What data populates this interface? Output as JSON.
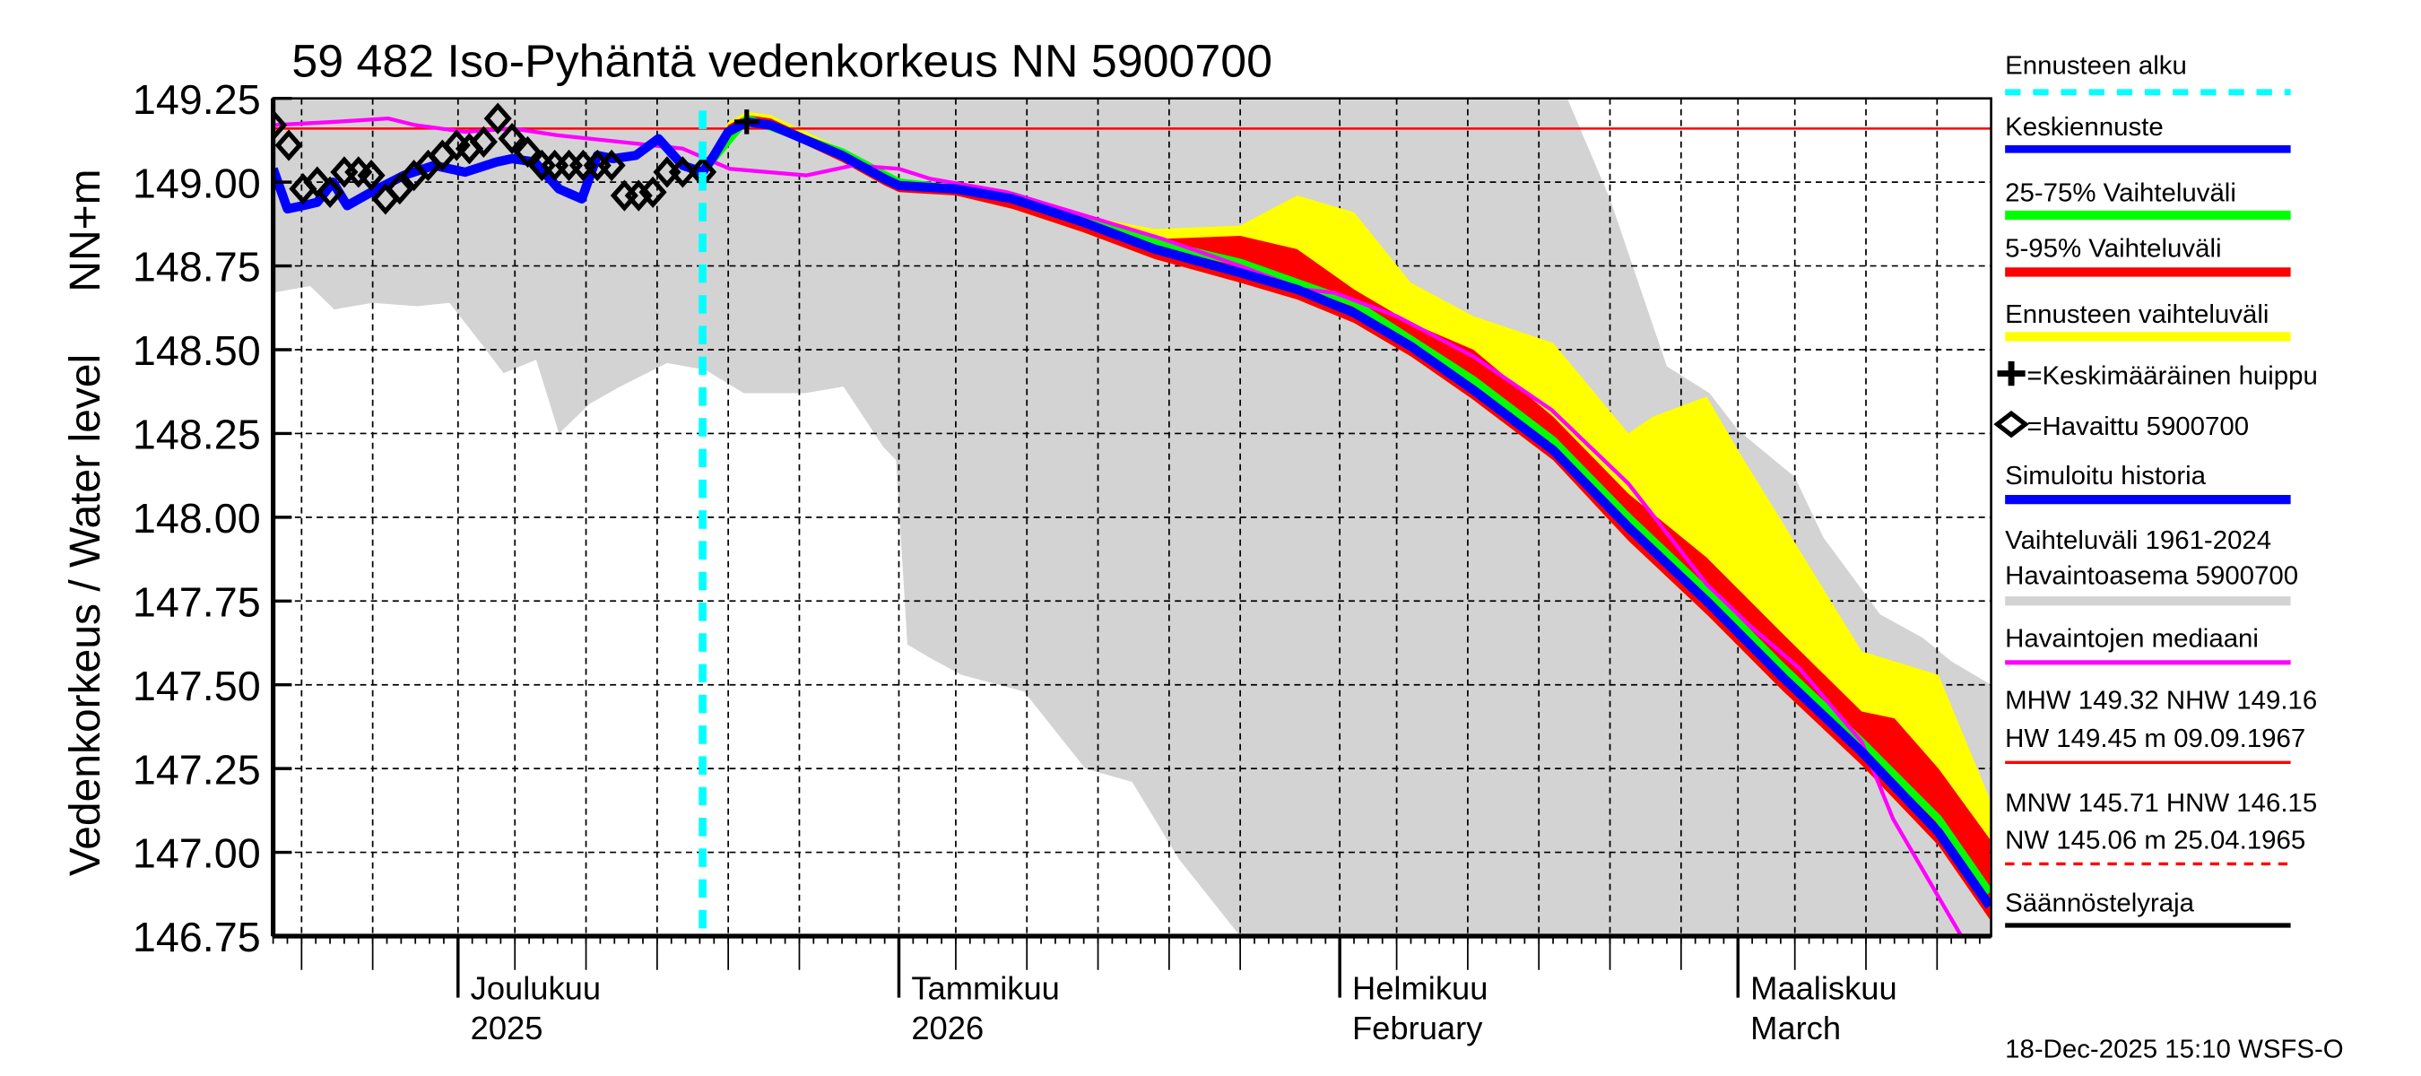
{
  "chart_data": {
    "type": "area",
    "title": "59 482 Iso-Pyhäntä vedenkorkeus NN 5900700",
    "ylabel_top": "NN+m",
    "ylabel": "Vedenkorkeus / Water level",
    "ylim": [
      146.75,
      149.25
    ],
    "yticks": [
      "149.25",
      "149.00",
      "148.75",
      "148.50",
      "148.25",
      "148.00",
      "147.75",
      "147.50",
      "147.25",
      "147.00",
      "146.75"
    ],
    "x_unit": "days since plot start",
    "xlim": [
      0,
      120.8
    ],
    "months": [
      {
        "day": 13,
        "label1": "Joulukuu",
        "label2": "2025"
      },
      {
        "day": 44,
        "label1": "Tammikuu",
        "label2": "2026"
      },
      {
        "day": 75,
        "label1": "Helmikuu",
        "label2": "February"
      },
      {
        "day": 103,
        "label1": "Maaliskuu",
        "label2": "March"
      }
    ],
    "forecast_start_day": 30.2,
    "nhw_line": 149.16,
    "mean_peak": {
      "day": 33.3,
      "value": 149.18
    },
    "history_range": {
      "upper": [
        [
          0,
          149.25
        ],
        [
          91,
          149.25
        ],
        [
          94,
          148.95
        ],
        [
          96,
          148.7
        ],
        [
          98,
          148.45
        ],
        [
          101,
          148.37
        ],
        [
          103,
          148.26
        ],
        [
          107,
          148.12
        ],
        [
          109,
          147.94
        ],
        [
          113,
          147.71
        ],
        [
          116,
          147.64
        ],
        [
          118,
          147.57
        ],
        [
          120.8,
          147.5
        ]
      ],
      "lower": [
        [
          0,
          148.67
        ],
        [
          2.6,
          148.69
        ],
        [
          4.3,
          148.62
        ],
        [
          7,
          148.64
        ],
        [
          10.1,
          148.63
        ],
        [
          12.4,
          148.64
        ],
        [
          14.6,
          148.52
        ],
        [
          16.2,
          148.43
        ],
        [
          18.5,
          148.47
        ],
        [
          20.1,
          148.25
        ],
        [
          22.3,
          148.34
        ],
        [
          24.4,
          148.39
        ],
        [
          27.7,
          148.46
        ],
        [
          30.4,
          148.44
        ],
        [
          33.1,
          148.37
        ],
        [
          37.4,
          148.37
        ],
        [
          40.1,
          148.39
        ],
        [
          42.9,
          148.21
        ],
        [
          43.8,
          148.17
        ],
        [
          44.6,
          147.62
        ],
        [
          46.2,
          147.58
        ],
        [
          48.4,
          147.53
        ],
        [
          52.8,
          147.48
        ],
        [
          57.1,
          147.25
        ],
        [
          60.4,
          147.21
        ],
        [
          63.7,
          146.98
        ],
        [
          68,
          146.75
        ],
        [
          120.8,
          146.75
        ]
      ]
    },
    "series": [
      {
        "name": "Simuloitu historia",
        "color": "#0000ff",
        "points": [
          [
            0,
            149.04
          ],
          [
            1,
            148.92
          ],
          [
            2.1,
            148.93
          ],
          [
            3.1,
            148.94
          ],
          [
            4.2,
            149.0
          ],
          [
            5.2,
            148.93
          ],
          [
            6.9,
            148.97
          ],
          [
            9.2,
            149.02
          ],
          [
            11.3,
            149.05
          ],
          [
            13.5,
            149.03
          ],
          [
            15.7,
            149.06
          ],
          [
            16.8,
            149.07
          ],
          [
            18.4,
            149.06
          ],
          [
            20.1,
            148.98
          ],
          [
            21.7,
            148.95
          ],
          [
            22.8,
            149.08
          ],
          [
            23.9,
            149.07
          ],
          [
            25.5,
            149.08
          ],
          [
            27.1,
            149.13
          ],
          [
            28.8,
            149.05
          ],
          [
            30.2,
            149.03
          ]
        ]
      },
      {
        "name": "Keskiennuste",
        "color": "#0000ff",
        "points": [
          [
            30.2,
            149.03
          ],
          [
            31,
            149.08
          ],
          [
            32,
            149.15
          ],
          [
            33.3,
            149.18
          ],
          [
            35,
            149.17
          ],
          [
            40,
            149.08
          ],
          [
            43,
            149.01
          ],
          [
            44,
            148.99
          ],
          [
            48,
            148.98
          ],
          [
            52,
            148.95
          ],
          [
            57,
            148.88
          ],
          [
            62,
            148.8
          ],
          [
            68,
            148.73
          ],
          [
            72,
            148.68
          ],
          [
            76,
            148.61
          ],
          [
            80,
            148.51
          ],
          [
            84.4,
            148.38
          ],
          [
            90,
            148.2
          ],
          [
            95.3,
            147.97
          ],
          [
            100.8,
            147.75
          ],
          [
            106.2,
            147.52
          ],
          [
            111.7,
            147.3
          ],
          [
            117.1,
            147.06
          ],
          [
            120.7,
            146.84
          ]
        ]
      },
      {
        "name": "Ennusteen vaihteluväli",
        "color": "#ffff00",
        "upper": [
          [
            30.2,
            149.03
          ],
          [
            31,
            149.1
          ],
          [
            32,
            149.18
          ],
          [
            33.3,
            149.21
          ],
          [
            35,
            149.2
          ],
          [
            40,
            149.1
          ],
          [
            43,
            149.02
          ],
          [
            44,
            149.0
          ],
          [
            48,
            148.99
          ],
          [
            52,
            148.96
          ],
          [
            57,
            148.9
          ],
          [
            62,
            148.86
          ],
          [
            68,
            148.87
          ],
          [
            72,
            148.96
          ],
          [
            76,
            148.91
          ],
          [
            80,
            148.7
          ],
          [
            84.4,
            148.6
          ],
          [
            90,
            148.52
          ],
          [
            95.3,
            148.25
          ],
          [
            97,
            148.3
          ],
          [
            100.8,
            148.36
          ],
          [
            103,
            148.2
          ],
          [
            106.2,
            147.98
          ],
          [
            111.7,
            147.6
          ],
          [
            117.1,
            147.53
          ],
          [
            120.7,
            147.16
          ]
        ]
      },
      {
        "name": "5-95% Vaihteluväli",
        "color": "#ff0000",
        "upper": [
          [
            30.2,
            149.03
          ],
          [
            31,
            149.09
          ],
          [
            32,
            149.17
          ],
          [
            33.3,
            149.2
          ],
          [
            35,
            149.19
          ],
          [
            40,
            149.09
          ],
          [
            43,
            149.01
          ],
          [
            44,
            148.99
          ],
          [
            48,
            148.98
          ],
          [
            52,
            148.95
          ],
          [
            57,
            148.89
          ],
          [
            62,
            148.83
          ],
          [
            68,
            148.84
          ],
          [
            72,
            148.8
          ],
          [
            76,
            148.68
          ],
          [
            80,
            148.58
          ],
          [
            84.4,
            148.5
          ],
          [
            90,
            148.3
          ],
          [
            95.3,
            148.07
          ],
          [
            100.8,
            147.88
          ],
          [
            106.2,
            147.65
          ],
          [
            111.7,
            147.42
          ],
          [
            114,
            147.4
          ],
          [
            117.1,
            147.25
          ],
          [
            120.7,
            147.04
          ]
        ]
      },
      {
        "name": "25-75% Vaihteluväli",
        "color": "#00ff00",
        "upper": [
          [
            30.2,
            149.03
          ],
          [
            33.3,
            149.19
          ],
          [
            40,
            149.09
          ],
          [
            44,
            149.0
          ],
          [
            52,
            148.96
          ],
          [
            62,
            148.82
          ],
          [
            68,
            148.76
          ],
          [
            76,
            148.64
          ],
          [
            84.4,
            148.41
          ],
          [
            90,
            148.23
          ],
          [
            95.3,
            148.0
          ],
          [
            100.8,
            147.78
          ],
          [
            106.2,
            147.55
          ],
          [
            111.7,
            147.33
          ],
          [
            117.1,
            147.1
          ],
          [
            120.7,
            146.88
          ]
        ]
      },
      {
        "name": "band_lower",
        "color": "#ff0000",
        "points": [
          [
            30.2,
            149.02
          ],
          [
            31,
            149.07
          ],
          [
            32,
            149.14
          ],
          [
            33.3,
            149.17
          ],
          [
            35,
            149.16
          ],
          [
            40,
            149.06
          ],
          [
            43,
            148.99
          ],
          [
            44,
            148.97
          ],
          [
            48,
            148.96
          ],
          [
            52,
            148.92
          ],
          [
            57,
            148.85
          ],
          [
            62,
            148.77
          ],
          [
            68,
            148.7
          ],
          [
            72,
            148.65
          ],
          [
            76,
            148.58
          ],
          [
            80,
            148.48
          ],
          [
            84.4,
            148.35
          ],
          [
            90,
            148.17
          ],
          [
            95.3,
            147.93
          ],
          [
            100.8,
            147.71
          ],
          [
            106.2,
            147.48
          ],
          [
            111.7,
            147.26
          ],
          [
            117.1,
            147.02
          ],
          [
            120.7,
            146.8
          ]
        ]
      },
      {
        "name": "Havaintojen mediaani",
        "color": "#ff00ff",
        "points": [
          [
            0,
            149.17
          ],
          [
            4.3,
            149.18
          ],
          [
            8.1,
            149.19
          ],
          [
            10,
            149.17
          ],
          [
            13.5,
            149.15
          ],
          [
            16.8,
            149.16
          ],
          [
            20,
            149.14
          ],
          [
            24.4,
            149.12
          ],
          [
            28.8,
            149.1
          ],
          [
            32.1,
            149.04
          ],
          [
            37.5,
            149.02
          ],
          [
            40.8,
            149.05
          ],
          [
            44,
            149.04
          ],
          [
            46.2,
            149.01
          ],
          [
            51.6,
            148.97
          ],
          [
            57.1,
            148.9
          ],
          [
            62.6,
            148.83
          ],
          [
            68,
            148.75
          ],
          [
            72.4,
            148.68
          ],
          [
            74.6,
            148.67
          ],
          [
            79,
            148.6
          ],
          [
            84.4,
            148.48
          ],
          [
            89.9,
            148.32
          ],
          [
            95.3,
            148.1
          ],
          [
            100.8,
            147.8
          ],
          [
            104,
            147.67
          ],
          [
            107.3,
            147.55
          ],
          [
            111.7,
            147.33
          ],
          [
            113.9,
            147.1
          ],
          [
            118.7,
            146.75
          ]
        ]
      }
    ],
    "observed": {
      "name": "Havaittu 5900700",
      "points": [
        [
          0,
          149.17
        ],
        [
          1.1,
          149.11
        ],
        [
          2.1,
          148.98
        ],
        [
          3.1,
          149.0
        ],
        [
          4.0,
          148.97
        ],
        [
          5.0,
          149.03
        ],
        [
          6.0,
          149.03
        ],
        [
          6.9,
          149.02
        ],
        [
          7.9,
          148.95
        ],
        [
          8.9,
          148.98
        ],
        [
          9.9,
          149.02
        ],
        [
          10.9,
          149.05
        ],
        [
          11.9,
          149.08
        ],
        [
          12.9,
          149.11
        ],
        [
          13.8,
          149.1
        ],
        [
          14.8,
          149.12
        ],
        [
          15.8,
          149.19
        ],
        [
          16.8,
          149.13
        ],
        [
          17.9,
          149.09
        ],
        [
          18.9,
          149.05
        ],
        [
          19.8,
          149.05
        ],
        [
          20.8,
          149.05
        ],
        [
          21.8,
          149.05
        ],
        [
          22.8,
          149.05
        ],
        [
          23.8,
          149.05
        ],
        [
          24.7,
          148.96
        ],
        [
          25.7,
          148.96
        ],
        [
          26.7,
          148.97
        ],
        [
          27.7,
          149.03
        ],
        [
          28.8,
          149.03
        ],
        [
          30.2,
          149.03
        ]
      ]
    }
  },
  "legend": {
    "forecast_start": "Ennusteen alku",
    "mean_forecast": "Keskiennuste",
    "range_25_75": "25-75% Vaihteluväli",
    "range_5_95": "5-95% Vaihteluväli",
    "forecast_range": "Ennusteen vaihteluväli",
    "mean_peak": "=Keskimääräinen huippu",
    "observed": "=Havaittu 5900700",
    "simulated": "Simuloitu historia",
    "hist_range_1": "Vaihteluväli 1961-2024",
    "hist_range_2": "Havaintoasema 5900700",
    "median": "Havaintojen mediaani",
    "high_1": "MHW 149.32 NHW 149.16",
    "high_2": "HW 149.45 m 09.09.1967",
    "low_1": "MNW 145.71 HNW 146.15",
    "low_2": "NW 145.06 m 25.04.1965",
    "regulation": "Säännöstelyraja"
  },
  "colors": {
    "cyan": "#00ffff",
    "blue": "#0000ff",
    "green": "#00ff00",
    "red": "#ff0000",
    "yellow": "#ffff00",
    "grey": "#d3d3d3",
    "magenta": "#ff00ff"
  },
  "footer": "18-Dec-2025 15:10 WSFS-O"
}
